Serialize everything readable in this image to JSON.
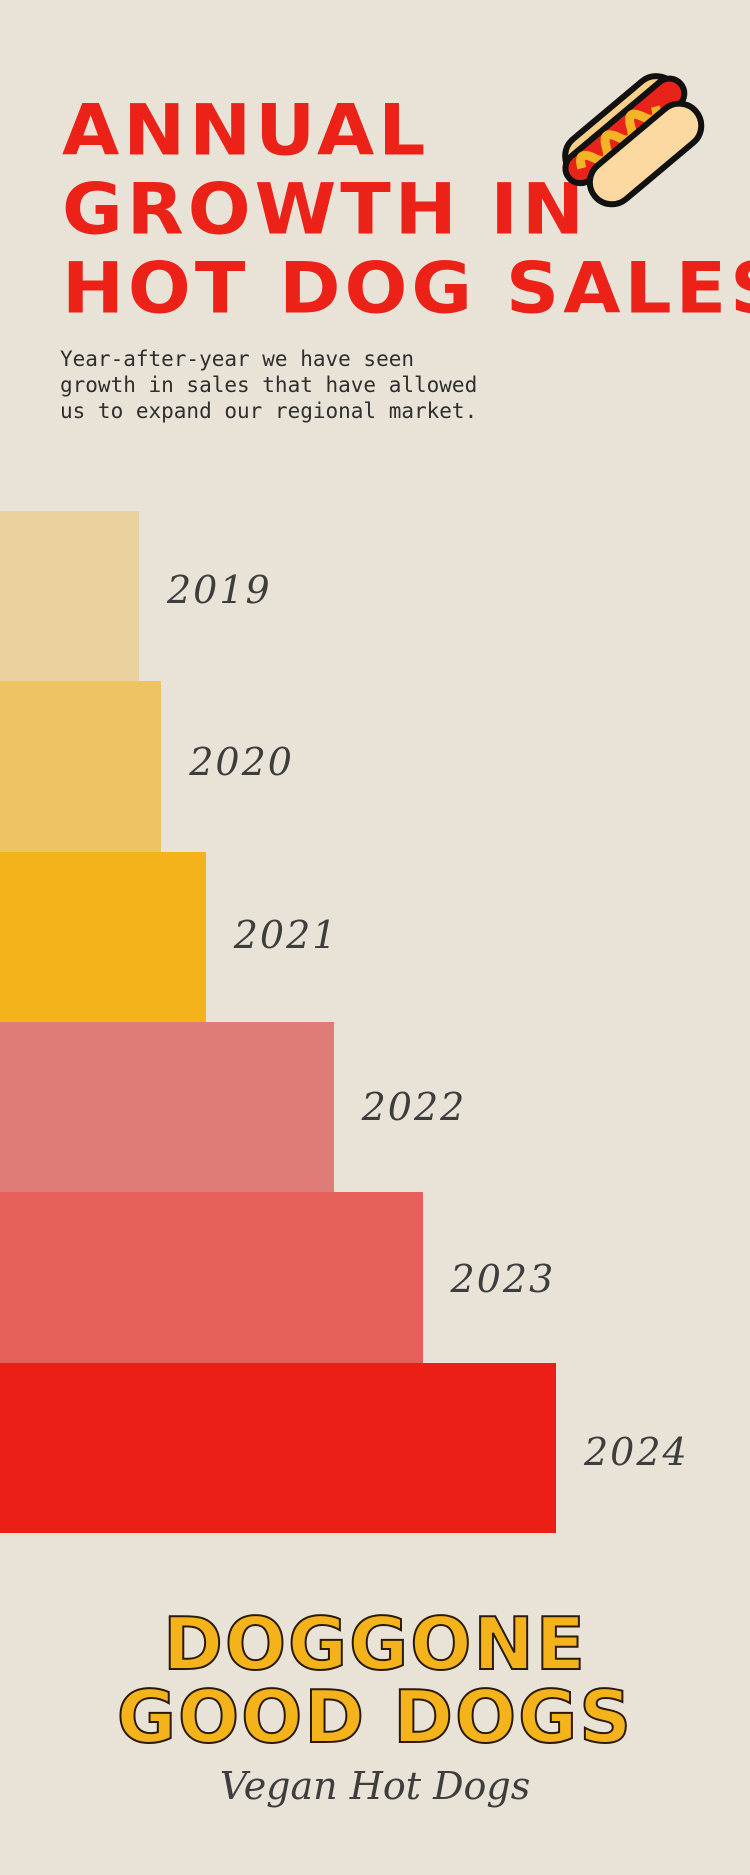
{
  "header": {
    "title_lines": [
      "ANNUAL",
      "GROWTH IN",
      "HOT DOG SALES"
    ],
    "description": "Year-after-year we have seen growth in sales that have allowed us to expand our regional market."
  },
  "icons": {
    "hotdog": "hot-dog-icon"
  },
  "chart_data": {
    "type": "bar",
    "orientation": "horizontal",
    "title": "",
    "categories": [
      "2019",
      "2020",
      "2021",
      "2022",
      "2023",
      "2024"
    ],
    "values": [
      25,
      29,
      37,
      60,
      76,
      100
    ],
    "colors": [
      "#e8d19c",
      "#edc364",
      "#f5b31b",
      "#e07c77",
      "#e56058",
      "#ec1f17"
    ],
    "axes_visible": false,
    "grid": false
  },
  "footer": {
    "brand_line1": "DOGGONE",
    "brand_line2": "GOOD DOGS",
    "tagline": "Vegan Hot Dogs"
  },
  "colors": {
    "background": "#e8e2d7",
    "title": "#ec2117",
    "brand": "#f5b31b"
  }
}
